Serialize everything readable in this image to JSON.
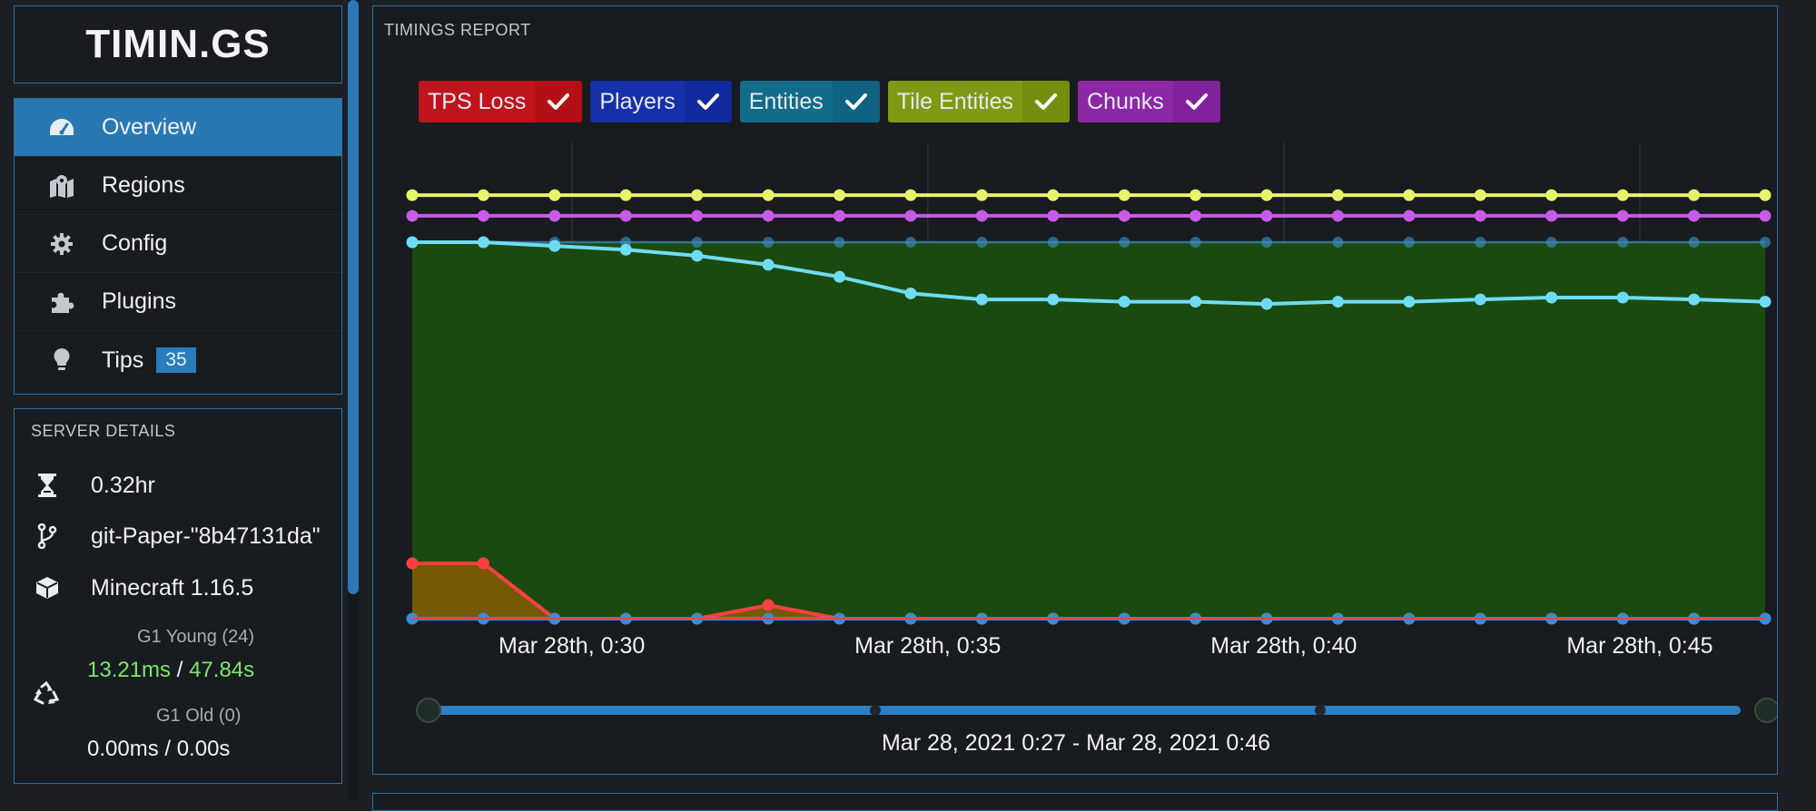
{
  "brand": {
    "name": "TIMIN.GS"
  },
  "nav": {
    "items": [
      {
        "label": "Overview",
        "icon": "speedometer-icon",
        "active": true
      },
      {
        "label": "Regions",
        "icon": "map-marker-icon",
        "active": false
      },
      {
        "label": "Config",
        "icon": "gear-icon",
        "active": false
      },
      {
        "label": "Plugins",
        "icon": "puzzle-icon",
        "active": false
      },
      {
        "label": "Tips",
        "icon": "lightbulb-icon",
        "active": false,
        "badge": "35"
      }
    ]
  },
  "server_details": {
    "title": "SERVER DETAILS",
    "uptime": "0.32hr",
    "version": "git-Paper-\"8b47131da\"",
    "minecraft": "Minecraft 1.16.5",
    "gc_young_label": "G1 Young (24)",
    "gc_young_ms": "13.21ms",
    "gc_sep": "/",
    "gc_young_s": "47.84s",
    "gc_old_label": "G1 Old (0)",
    "gc_old_value": "0.00ms / 0.00s"
  },
  "report": {
    "title": "TIMINGS REPORT",
    "range_label": "Mar 28, 2021 0:27 - Mar 28, 2021 0:46"
  },
  "colors": {
    "tps_loss": "#c0141c",
    "players": "#1530a8",
    "entities": "#136b8a",
    "tile_entities": "#7e9a14",
    "chunks": "#8d27a6",
    "accent": "#2a78b2",
    "area_green": "#1b4a0e"
  },
  "chart_data": {
    "type": "line",
    "x_tick_labels": [
      "Mar 28th, 0:30",
      "Mar 28th, 0:35",
      "Mar 28th, 0:40",
      "Mar 28th, 0:45"
    ],
    "x": [
      0,
      1,
      2,
      3,
      4,
      5,
      6,
      7,
      8,
      9,
      10,
      11,
      12,
      13,
      14,
      15,
      16,
      17,
      18,
      19
    ],
    "ylim": [
      0,
      100
    ],
    "series": [
      {
        "name": "TPS Loss",
        "color": "#ff4040",
        "fill": "#7a5a06",
        "values": [
          14.7,
          14.7,
          0,
          0,
          0,
          3.6,
          0,
          0,
          0,
          0,
          0,
          0,
          0,
          0,
          0,
          0,
          0,
          0,
          0,
          0
        ]
      },
      {
        "name": "Players",
        "color": "#3d8bd4",
        "fill": null,
        "values": [
          0,
          0,
          0,
          0,
          0,
          0,
          0,
          0,
          0,
          0,
          0,
          0,
          0,
          0,
          0,
          0,
          0,
          0,
          0,
          0
        ]
      },
      {
        "name": "Entities",
        "color": "#6fdcf5",
        "fill": null,
        "values": [
          100,
          100,
          99,
          98,
          96.4,
          94,
          90.8,
          86.4,
          84.8,
          84.8,
          84.2,
          84.2,
          83.6,
          84.2,
          84.2,
          84.8,
          85.3,
          85.3,
          84.8,
          84.2
        ]
      },
      {
        "name": "Tile Entities",
        "color": "#e7f46a",
        "fill": null,
        "values": [
          112.5,
          112.5,
          112.5,
          112.5,
          112.5,
          112.5,
          112.5,
          112.5,
          112.5,
          112.5,
          112.5,
          112.5,
          112.5,
          112.5,
          112.5,
          112.5,
          112.5,
          112.5,
          112.5,
          112.5
        ]
      },
      {
        "name": "Chunks",
        "color": "#c85ae8",
        "fill": null,
        "values": [
          107,
          107,
          107,
          107,
          107,
          107,
          107,
          107,
          107,
          107,
          107,
          107,
          107,
          107,
          107,
          107,
          107,
          107,
          107,
          107
        ]
      },
      {
        "name": "TPS",
        "color": "#3c8dc2",
        "fill": "#1b4a0e",
        "values": [
          100,
          100,
          100,
          100,
          100,
          100,
          100,
          100,
          100,
          100,
          100,
          100,
          100,
          100,
          100,
          100,
          100,
          100,
          100,
          100
        ]
      }
    ]
  }
}
